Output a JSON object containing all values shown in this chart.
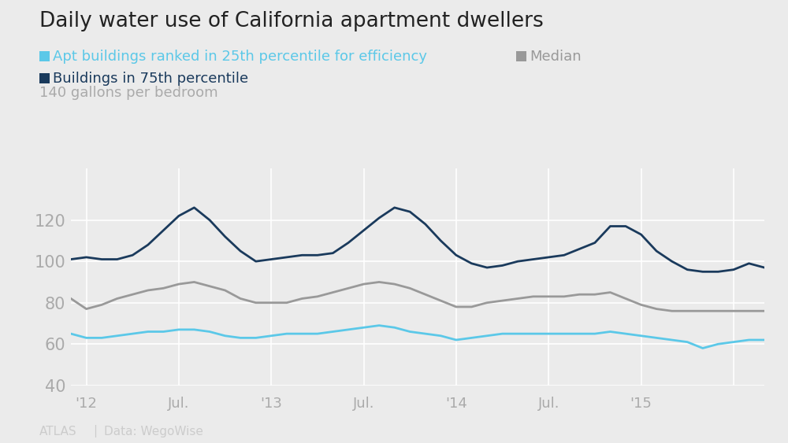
{
  "title": "Daily water use of California apartment dwellers",
  "ylabel": "140 gallons per bedroom",
  "source": "Data: WegoWise",
  "atlas": "ATLAS",
  "background_color": "#ebebeb",
  "plot_bg_color": "#ebebeb",
  "grid_color": "#ffffff",
  "ylim": [
    40,
    145
  ],
  "yticks": [
    40,
    60,
    80,
    100,
    120
  ],
  "xtick_labels": [
    "'12",
    "Jul.",
    "'13",
    "Jul.",
    "'14",
    "Jul.",
    "'15",
    ""
  ],
  "line_25th_color": "#5bc8e8",
  "line_median_color": "#999999",
  "line_75th_color": "#1a3a5c",
  "line_width": 2.0,
  "legend_25th": "Apt buildings ranked in 25th percentile for efficiency",
  "legend_median": "Median",
  "legend_75th": "Buildings in 75th percentile",
  "x": [
    0,
    1,
    2,
    3,
    4,
    5,
    6,
    7,
    8,
    9,
    10,
    11,
    12,
    13,
    14,
    15,
    16,
    17,
    18,
    19,
    20,
    21,
    22,
    23,
    24,
    25,
    26,
    27,
    28,
    29,
    30,
    31,
    32,
    33,
    34,
    35,
    36,
    37,
    38,
    39,
    40,
    41,
    42,
    43,
    44,
    45
  ],
  "y_25th": [
    65,
    63,
    63,
    64,
    65,
    66,
    66,
    67,
    67,
    66,
    64,
    63,
    63,
    64,
    65,
    65,
    65,
    66,
    67,
    68,
    69,
    68,
    66,
    65,
    64,
    62,
    63,
    64,
    65,
    65,
    65,
    65,
    65,
    65,
    65,
    66,
    65,
    64,
    63,
    62,
    61,
    58,
    60,
    61,
    62,
    62
  ],
  "y_median": [
    82,
    77,
    79,
    82,
    84,
    86,
    87,
    89,
    90,
    88,
    86,
    82,
    80,
    80,
    80,
    82,
    83,
    85,
    87,
    89,
    90,
    89,
    87,
    84,
    81,
    78,
    78,
    80,
    81,
    82,
    83,
    83,
    83,
    84,
    84,
    85,
    82,
    79,
    77,
    76,
    76,
    76,
    76,
    76,
    76,
    76
  ],
  "y_75th": [
    101,
    102,
    101,
    101,
    103,
    108,
    115,
    122,
    126,
    120,
    112,
    105,
    100,
    101,
    102,
    103,
    103,
    104,
    109,
    115,
    121,
    126,
    124,
    118,
    110,
    103,
    99,
    97,
    98,
    100,
    101,
    102,
    103,
    106,
    109,
    117,
    117,
    113,
    105,
    100,
    96,
    95,
    95,
    96,
    99,
    97
  ],
  "xtick_positions": [
    1,
    7,
    13,
    19,
    25,
    31,
    37,
    43
  ]
}
